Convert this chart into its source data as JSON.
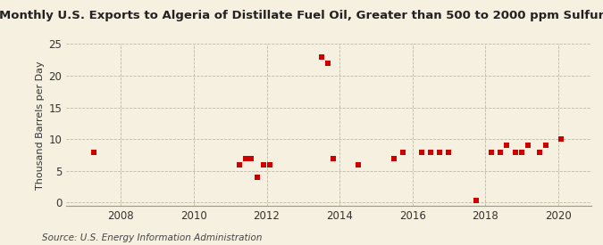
{
  "title": "Monthly U.S. Exports to Algeria of Distillate Fuel Oil, Greater than 500 to 2000 ppm Sulfur",
  "ylabel": "Thousand Barrels per Day",
  "source": "Source: U.S. Energy Information Administration",
  "background_color": "#f5f0df",
  "scatter_color": "#cc0000",
  "xlim": [
    2006.5,
    2020.9
  ],
  "ylim": [
    -0.5,
    25
  ],
  "yticks": [
    0,
    5,
    10,
    15,
    20,
    25
  ],
  "xticks": [
    2008,
    2010,
    2012,
    2014,
    2016,
    2018,
    2020
  ],
  "data_x": [
    2007.25,
    2011.25,
    2011.42,
    2011.58,
    2011.75,
    2011.92,
    2012.08,
    2013.5,
    2013.67,
    2013.83,
    2014.5,
    2015.5,
    2015.75,
    2016.25,
    2016.5,
    2016.75,
    2017.0,
    2017.75,
    2018.17,
    2018.42,
    2018.58,
    2018.83,
    2019.0,
    2019.17,
    2019.5,
    2019.67,
    2020.08
  ],
  "data_y": [
    8,
    6,
    7,
    7,
    4,
    6,
    6,
    23,
    22,
    7,
    6,
    7,
    8,
    8,
    8,
    8,
    8,
    0.3,
    8,
    8,
    9,
    8,
    8,
    9,
    8,
    9,
    10
  ]
}
